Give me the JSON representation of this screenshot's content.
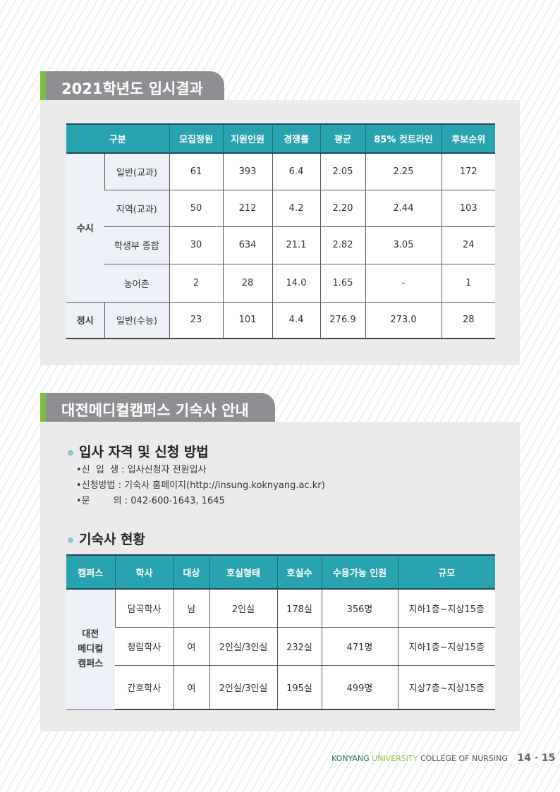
{
  "section1": {
    "title": "2021학년도 입시결과",
    "headers": [
      "구분",
      "모집정원",
      "지원인원",
      "경쟁률",
      "평균",
      "85% 컷트라인",
      "후보순위"
    ],
    "groups": [
      {
        "label": "수시",
        "rows": [
          [
            "일반(교과)",
            "61",
            "393",
            "6.4",
            "2.05",
            "2.25",
            "172"
          ],
          [
            "지역(교과)",
            "50",
            "212",
            "4.2",
            "2.20",
            "2.44",
            "103"
          ],
          [
            "학생부 종합",
            "30",
            "634",
            "21.1",
            "2.82",
            "3.05",
            "24"
          ],
          [
            "농어촌",
            "2",
            "28",
            "14.0",
            "1.65",
            "-",
            "1"
          ]
        ]
      },
      {
        "label": "정시",
        "rows": [
          [
            "일반(수능)",
            "23",
            "101",
            "4.4",
            "276.9",
            "273.0",
            "28"
          ]
        ]
      }
    ]
  },
  "section2": {
    "title": "대전메디컬캠퍼스 기숙사 안내",
    "apply": {
      "heading": "입사 자격 및 신청 방법",
      "items": [
        "•신  입  생 : 입사신청자 전원입사",
        "•신청방법 : 기숙사 홈페이지(http://insung.koknyang.ac.kr)",
        "•문        의 : 042-600-1643, 1645"
      ]
    },
    "dorm": {
      "heading": "기숙사 현황",
      "headers": [
        "캠퍼스",
        "학사",
        "대상",
        "호실형태",
        "호실수",
        "수용가능 인원",
        "규모"
      ],
      "campus": "대전\n메디컬\n캠퍼스",
      "rows": [
        [
          "담곡학사",
          "남",
          "2인실",
          "178실",
          "356명",
          "지하1층~지상15층"
        ],
        [
          "청림학사",
          "여",
          "2인실/3인실",
          "232실",
          "471명",
          "지하1층~지상15층"
        ],
        [
          "간호학사",
          "여",
          "2인실/3인실",
          "195실",
          "499명",
          "지상7층~지상15층"
        ]
      ]
    }
  },
  "footer": {
    "konyang": "KONYANG",
    "university": "UNIVERSITY",
    "college": "COLLEGE OF NURSING",
    "pages": "14 · 15"
  }
}
